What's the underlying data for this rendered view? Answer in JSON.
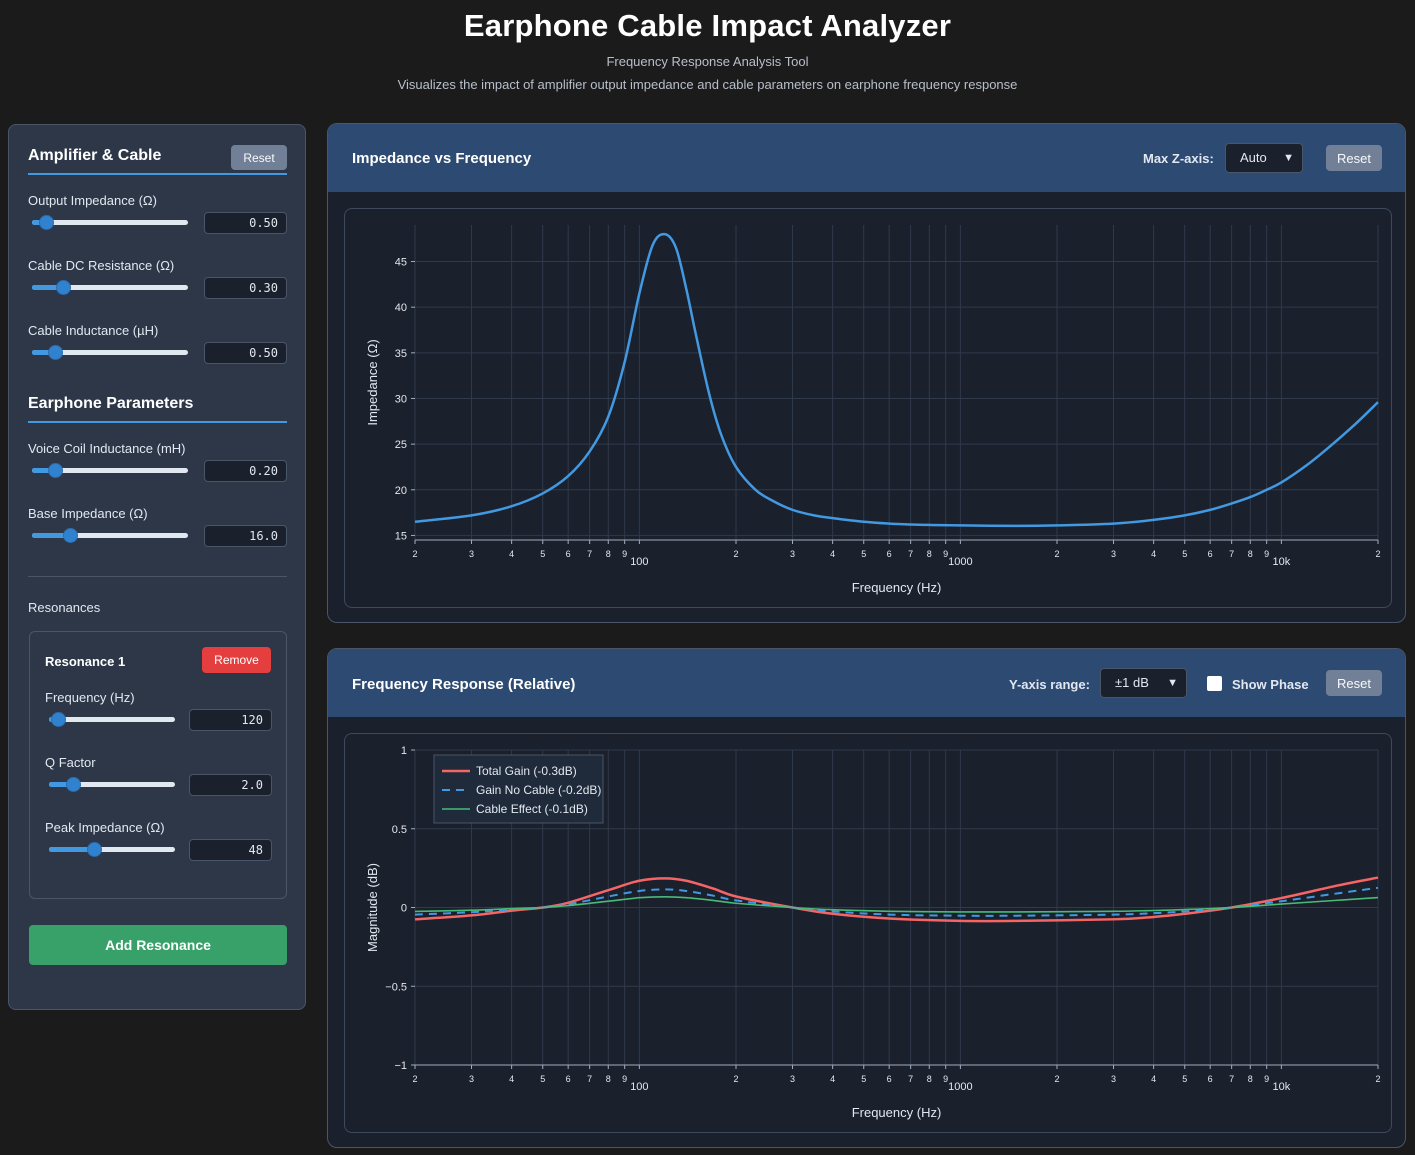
{
  "header": {
    "title": "Earphone Cable Impact Analyzer",
    "subtitle": "Frequency Response Analysis Tool",
    "description": "Visualizes the impact of amplifier output impedance and cable parameters on earphone frequency response"
  },
  "sidebar": {
    "amp_title": "Amplifier & Cable",
    "reset_label": "Reset",
    "amp_controls": [
      {
        "label": "Output Impedance (Ω)",
        "value": "0.50",
        "level": 0.05
      },
      {
        "label": "Cable DC Resistance (Ω)",
        "value": "0.30",
        "level": 0.17
      },
      {
        "label": "Cable Inductance (µH)",
        "value": "0.50",
        "level": 0.11
      }
    ],
    "earphone_title": "Earphone Parameters",
    "earphone_controls": [
      {
        "label": "Voice Coil Inductance (mH)",
        "value": "0.20",
        "level": 0.11
      },
      {
        "label": "Base Impedance (Ω)",
        "value": "16.0",
        "level": 0.22
      }
    ],
    "resonances_title": "Resonances",
    "resonance": {
      "title": "Resonance 1",
      "remove_label": "Remove",
      "controls": [
        {
          "label": "Frequency (Hz)",
          "value": "120",
          "level": 0.02
        },
        {
          "label": "Q Factor",
          "value": "2.0",
          "level": 0.15
        },
        {
          "label": "Peak Impedance (Ω)",
          "value": "48",
          "level": 0.34
        }
      ]
    },
    "add_resonance_label": "Add Resonance"
  },
  "impedance_panel": {
    "title": "Impedance vs Frequency",
    "max_z_label": "Max Z-axis:",
    "max_z_value": "Auto",
    "reset_label": "Reset"
  },
  "response_panel": {
    "title": "Frequency Response (Relative)",
    "y_range_label": "Y-axis range:",
    "y_range_value": "±1 dB",
    "show_phase_label": "Show Phase",
    "reset_label": "Reset"
  },
  "colors": {
    "accent": "#4299e1",
    "impedance_line": "#4299e1",
    "total_gain": "#f56565",
    "gain_no_cable": "#4299e1",
    "cable_effect": "#48bb78"
  },
  "chart_data": [
    {
      "type": "line",
      "xlabel": "Frequency (Hz)",
      "ylabel": "Impedance (Ω)",
      "x_scale": "log",
      "xlim": [
        20,
        20000
      ],
      "ylim": [
        14.5,
        49
      ],
      "x_tick_labels": [
        "2",
        "3",
        "4",
        "5",
        "6",
        "7",
        "8",
        "9",
        "100",
        "2",
        "3",
        "4",
        "5",
        "6",
        "7",
        "8",
        "9",
        "1000",
        "2",
        "3",
        "4",
        "5",
        "6",
        "7",
        "8",
        "9",
        "10k",
        "2"
      ],
      "y_ticks": [
        15,
        20,
        25,
        30,
        35,
        40,
        45
      ],
      "series": [
        {
          "x": [
            20,
            30,
            40,
            50,
            60,
            70,
            80,
            90,
            100,
            110,
            120,
            130,
            140,
            150,
            165,
            180,
            200,
            230,
            260,
            300,
            350,
            400,
            500,
            600,
            700,
            800,
            1000,
            1500,
            2000,
            3000,
            4000,
            5000,
            6000,
            7000,
            8000,
            9000,
            10000,
            12000,
            14000,
            17000,
            20000
          ],
          "y": [
            16.5,
            17.2,
            18.2,
            19.6,
            21.5,
            24.2,
            28.0,
            34.0,
            41.5,
            46.8,
            48.0,
            46.5,
            42.0,
            37.0,
            30.5,
            26.0,
            22.5,
            20.0,
            18.8,
            17.8,
            17.2,
            16.9,
            16.5,
            16.3,
            16.2,
            16.15,
            16.1,
            16.05,
            16.1,
            16.3,
            16.7,
            17.2,
            17.8,
            18.5,
            19.2,
            20.0,
            20.8,
            22.7,
            24.6,
            27.2,
            29.6
          ]
        }
      ]
    },
    {
      "type": "line",
      "xlabel": "Frequency (Hz)",
      "ylabel": "Magnitude (dB)",
      "x_scale": "log",
      "xlim": [
        20,
        20000
      ],
      "ylim": [
        -1,
        1
      ],
      "x_tick_labels": [
        "2",
        "3",
        "4",
        "5",
        "6",
        "7",
        "8",
        "9",
        "100",
        "2",
        "3",
        "4",
        "5",
        "6",
        "7",
        "8",
        "9",
        "1000",
        "2",
        "3",
        "4",
        "5",
        "6",
        "7",
        "8",
        "9",
        "10k",
        "2"
      ],
      "y_tick_labels": [
        "1",
        "0.5",
        "0",
        "−0.5",
        "−1"
      ],
      "y_ticks": [
        1,
        0.5,
        0,
        -0.5,
        -1
      ],
      "legend_position": "top-left",
      "series": [
        {
          "name": "Total Gain (-0.3dB)",
          "style": "solid",
          "x": [
            20,
            30,
            40,
            50,
            60,
            80,
            100,
            120,
            140,
            170,
            200,
            300,
            400,
            600,
            1000,
            1500,
            3000,
            4000,
            5000,
            7000,
            10000,
            15000,
            20000
          ],
          "y": [
            -0.075,
            -0.05,
            -0.02,
            0.0,
            0.03,
            0.11,
            0.17,
            0.185,
            0.17,
            0.12,
            0.07,
            0.0,
            -0.04,
            -0.07,
            -0.085,
            -0.085,
            -0.075,
            -0.06,
            -0.04,
            0.0,
            0.06,
            0.14,
            0.19
          ]
        },
        {
          "name": "Gain No Cable (-0.2dB)",
          "style": "dashed",
          "x": [
            20,
            30,
            40,
            50,
            60,
            80,
            100,
            120,
            140,
            170,
            200,
            300,
            400,
            600,
            1000,
            1500,
            3000,
            4000,
            5000,
            7000,
            10000,
            15000,
            20000
          ],
          "y": [
            -0.045,
            -0.03,
            -0.012,
            0.0,
            0.02,
            0.07,
            0.105,
            0.115,
            0.105,
            0.075,
            0.045,
            0.0,
            -0.025,
            -0.045,
            -0.052,
            -0.052,
            -0.045,
            -0.036,
            -0.025,
            0.0,
            0.04,
            0.09,
            0.125
          ]
        },
        {
          "name": "Cable Effect (-0.1dB)",
          "style": "solid",
          "x": [
            20,
            30,
            40,
            50,
            60,
            80,
            100,
            120,
            140,
            170,
            200,
            300,
            400,
            600,
            1000,
            1500,
            3000,
            4000,
            5000,
            7000,
            10000,
            15000,
            20000
          ],
          "y": [
            -0.025,
            -0.017,
            -0.007,
            0.0,
            0.012,
            0.04,
            0.062,
            0.068,
            0.062,
            0.045,
            0.027,
            0.0,
            -0.014,
            -0.024,
            -0.028,
            -0.028,
            -0.024,
            -0.019,
            -0.013,
            0.0,
            0.022,
            0.046,
            0.063
          ]
        }
      ]
    }
  ]
}
